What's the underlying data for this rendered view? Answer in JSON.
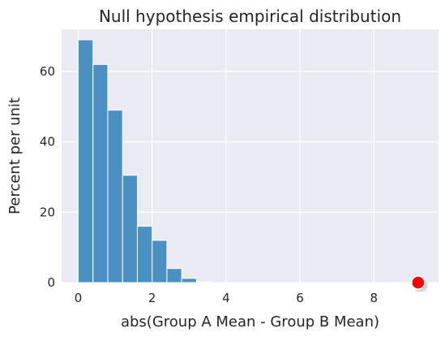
{
  "chart_data": {
    "type": "bar",
    "title": "Null hypothesis empirical distribution",
    "xlabel": "abs(Group A Mean - Group B Mean)",
    "ylabel": "Percent per unit",
    "xlim": [
      -0.45,
      9.75
    ],
    "ylim": [
      0,
      72
    ],
    "xticks": [
      0,
      2,
      4,
      6,
      8
    ],
    "yticks": [
      0,
      20,
      40,
      60
    ],
    "bin_width": 0.4,
    "bins": [
      {
        "start": 0.0,
        "end": 0.4,
        "value": 69
      },
      {
        "start": 0.4,
        "end": 0.8,
        "value": 62
      },
      {
        "start": 0.8,
        "end": 1.2,
        "value": 49
      },
      {
        "start": 1.2,
        "end": 1.6,
        "value": 30.5
      },
      {
        "start": 1.6,
        "end": 2.0,
        "value": 16
      },
      {
        "start": 2.0,
        "end": 2.4,
        "value": 12
      },
      {
        "start": 2.4,
        "end": 2.8,
        "value": 4
      },
      {
        "start": 2.8,
        "end": 3.2,
        "value": 1.2
      },
      {
        "start": 3.2,
        "end": 3.6,
        "value": 0.2
      }
    ],
    "observed_point": {
      "x": 9.2,
      "y": 0
    },
    "grid": true,
    "colors": {
      "bar": "#4b90c3",
      "plot_background": "#eaeaf2",
      "grid": "#ffffff",
      "marker": "#ff0000",
      "text": "#262626"
    }
  }
}
